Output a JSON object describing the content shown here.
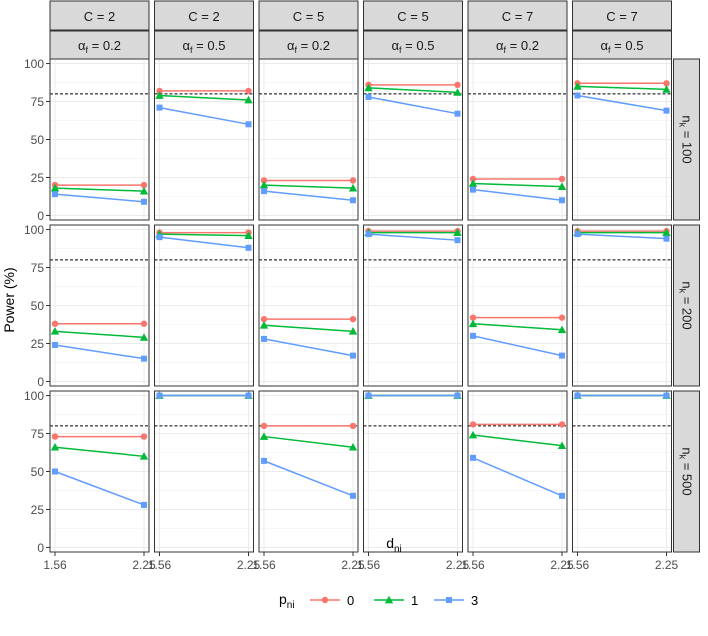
{
  "chart_data": {
    "type": "line",
    "title": "",
    "xlabel": "d",
    "xlabel_sub": "ni",
    "ylabel": "Power (%)",
    "x_tick_labels": [
      "1.56",
      "2.25"
    ],
    "y_ticks": [
      0,
      25,
      50,
      75,
      100
    ],
    "y_tick_labels": [
      "0",
      "25",
      "50",
      "75",
      "100"
    ],
    "ylim": [
      -3,
      103
    ],
    "reference_line": 80,
    "grid": true,
    "legend": {
      "title": "p",
      "title_sub": "ni",
      "position": "bottom",
      "entries": [
        "0",
        "1",
        "3"
      ]
    },
    "colors": {
      "0": "#F8766D",
      "1": "#00BA38",
      "3": "#619CFF"
    },
    "col_strips": [
      {
        "c": "C = 2",
        "alpha_sym": "α",
        "alpha_sub": "f",
        "alpha_val": " = 0.2"
      },
      {
        "c": "C = 2",
        "alpha_sym": "α",
        "alpha_sub": "f",
        "alpha_val": " = 0.5"
      },
      {
        "c": "C = 5",
        "alpha_sym": "α",
        "alpha_sub": "f",
        "alpha_val": " = 0.2"
      },
      {
        "c": "C = 5",
        "alpha_sym": "α",
        "alpha_sub": "f",
        "alpha_val": " = 0.5"
      },
      {
        "c": "C = 7",
        "alpha_sym": "α",
        "alpha_sub": "f",
        "alpha_val": " = 0.2"
      },
      {
        "c": "C = 7",
        "alpha_sym": "α",
        "alpha_sub": "f",
        "alpha_val": " = 0.5"
      }
    ],
    "row_strips": [
      {
        "sym": "n",
        "sub": "k",
        "val": " = 100"
      },
      {
        "sym": "n",
        "sub": "k",
        "val": " = 200"
      },
      {
        "sym": "n",
        "sub": "k",
        "val": " = 500"
      }
    ],
    "panels": [
      [
        {
          "0": [
            20,
            20
          ],
          "1": [
            18,
            16
          ],
          "3": [
            14,
            9
          ]
        },
        {
          "0": [
            82,
            82
          ],
          "1": [
            79,
            76
          ],
          "3": [
            71,
            60
          ]
        },
        {
          "0": [
            23,
            23
          ],
          "1": [
            20,
            18
          ],
          "3": [
            16,
            10
          ]
        },
        {
          "0": [
            86,
            86
          ],
          "1": [
            84,
            81
          ],
          "3": [
            78,
            67
          ]
        },
        {
          "0": [
            24,
            24
          ],
          "1": [
            21,
            19
          ],
          "3": [
            17,
            10
          ]
        },
        {
          "0": [
            87,
            87
          ],
          "1": [
            85,
            83
          ],
          "3": [
            79,
            69
          ]
        }
      ],
      [
        {
          "0": [
            38,
            38
          ],
          "1": [
            33,
            29
          ],
          "3": [
            24,
            15
          ]
        },
        {
          "0": [
            98,
            98
          ],
          "1": [
            97,
            96
          ],
          "3": [
            95,
            88
          ]
        },
        {
          "0": [
            41,
            41
          ],
          "1": [
            37,
            33
          ],
          "3": [
            28,
            17
          ]
        },
        {
          "0": [
            99,
            99
          ],
          "1": [
            98,
            98
          ],
          "3": [
            97,
            93
          ]
        },
        {
          "0": [
            42,
            42
          ],
          "1": [
            38,
            34
          ],
          "3": [
            30,
            17
          ]
        },
        {
          "0": [
            99,
            99
          ],
          "1": [
            98,
            98
          ],
          "3": [
            97,
            94
          ]
        }
      ],
      [
        {
          "0": [
            73,
            73
          ],
          "1": [
            66,
            60
          ],
          "3": [
            50,
            28
          ]
        },
        {
          "0": [
            100,
            100
          ],
          "1": [
            100,
            100
          ],
          "3": [
            100,
            100
          ]
        },
        {
          "0": [
            80,
            80
          ],
          "1": [
            73,
            66
          ],
          "3": [
            57,
            34
          ]
        },
        {
          "0": [
            100,
            100
          ],
          "1": [
            100,
            100
          ],
          "3": [
            100,
            100
          ]
        },
        {
          "0": [
            81,
            81
          ],
          "1": [
            74,
            67
          ],
          "3": [
            59,
            34
          ]
        },
        {
          "0": [
            100,
            100
          ],
          "1": [
            100,
            100
          ],
          "3": [
            100,
            100
          ]
        }
      ]
    ]
  }
}
